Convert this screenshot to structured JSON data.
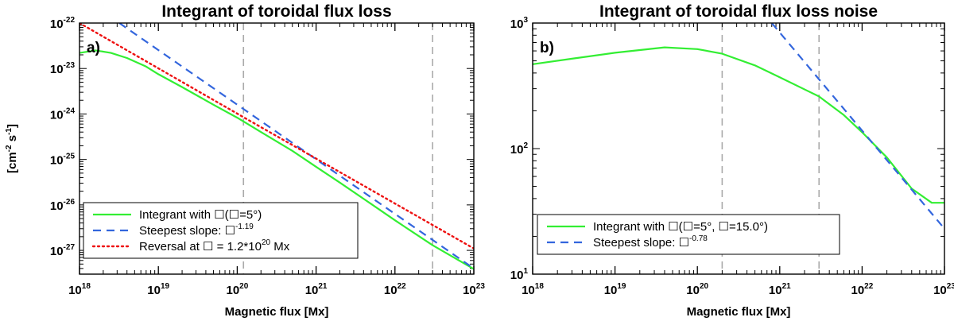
{
  "chart_data": [
    {
      "type": "line",
      "panel_label": "a)",
      "title": "Integrant of toroidal flux loss",
      "xlabel": "Magnetic flux [Mx]",
      "ylabel_parts": [
        "[cm",
        "-2",
        " s",
        "-1",
        "]"
      ],
      "x_scale": "log",
      "y_scale": "log",
      "xlim": [
        1e+18,
        1e+23
      ],
      "ylim": [
        3e-28,
        1e-22
      ],
      "x_ticks": [
        {
          "value": 1e+18,
          "base": "10",
          "exp": "18"
        },
        {
          "value": 1e+19,
          "base": "10",
          "exp": "19"
        },
        {
          "value": 1e+20,
          "base": "10",
          "exp": "20"
        },
        {
          "value": 1e+21,
          "base": "10",
          "exp": "21"
        },
        {
          "value": 1e+22,
          "base": "10",
          "exp": "22"
        },
        {
          "value": 1e+23,
          "base": "10",
          "exp": "23"
        }
      ],
      "y_ticks": [
        {
          "value": 1e-27,
          "base": "10",
          "exp": "-27"
        },
        {
          "value": 1e-26,
          "base": "10",
          "exp": "-26"
        },
        {
          "value": 1e-25,
          "base": "10",
          "exp": "-25"
        },
        {
          "value": 1e-24,
          "base": "10",
          "exp": "-24"
        },
        {
          "value": 1e-23,
          "base": "10",
          "exp": "-23"
        },
        {
          "value": 1e-22,
          "base": "10",
          "exp": "-22"
        }
      ],
      "vlines": [
        1.2e+20,
        3e+22
      ],
      "series": [
        {
          "name": "Integrant with ☐(☐=5°)",
          "style": "solid",
          "color": "#33ee33",
          "x": [
            1e+18,
            1.6e+18,
            2.5e+18,
            4e+18,
            7e+18,
            1e+19,
            2e+19,
            5e+19,
            1e+20,
            2e+20,
            5e+20,
            1e+21,
            2e+21,
            5e+21,
            1e+22,
            3e+22,
            1e+23
          ],
          "y": [
            2.2e-23,
            2.5e-23,
            2.2e-23,
            1.7e-23,
            1.1e-23,
            7.5e-24,
            3.9e-24,
            1.6e-24,
            8.3e-25,
            4e-25,
            1.55e-25,
            6.9e-26,
            3.1e-26,
            1.05e-26,
            4.6e-27,
            1.3e-27,
            3.9e-28
          ]
        },
        {
          "name": "Steepest slope: ☐",
          "slope_label": "-1.19",
          "style": "dashed",
          "color": "#3366dd",
          "x": [
            3.2e+18,
            1e+23
          ],
          "y": [
            1e-22,
            4e-28
          ]
        },
        {
          "name": "Reversal at ☐ = 1.2*10",
          "reversal_exp": "20",
          "reversal_unit": "Mx",
          "style": "dotted",
          "color": "#ee1111",
          "x": [
            1e+18,
            1.2e+20,
            1e+23
          ],
          "y": [
            1e-22,
            8.5e-25,
            1.1e-27
          ]
        }
      ],
      "legend_loc": "lower-left"
    },
    {
      "type": "line",
      "panel_label": "b)",
      "title": "Integrant of toroidal flux loss noise",
      "xlabel": "Magnetic flux [Mx]",
      "x_scale": "log",
      "y_scale": "log",
      "xlim": [
        1e+18,
        1e+23
      ],
      "ylim": [
        10,
        1000
      ],
      "x_ticks": [
        {
          "value": 1e+18,
          "base": "10",
          "exp": "18"
        },
        {
          "value": 1e+19,
          "base": "10",
          "exp": "19"
        },
        {
          "value": 1e+20,
          "base": "10",
          "exp": "20"
        },
        {
          "value": 1e+21,
          "base": "10",
          "exp": "21"
        },
        {
          "value": 1e+22,
          "base": "10",
          "exp": "22"
        },
        {
          "value": 1e+23,
          "base": "10",
          "exp": "23"
        }
      ],
      "y_ticks": [
        {
          "value": 10,
          "base": "10",
          "exp": "1"
        },
        {
          "value": 100,
          "base": "10",
          "exp": "2"
        },
        {
          "value": 1000,
          "base": "10",
          "exp": "3"
        }
      ],
      "vlines": [
        2e+20,
        3e+21
      ],
      "series": [
        {
          "name": "Integrant with ☐(☐=5°, ☐=15.0°)",
          "style": "solid",
          "color": "#33ee33",
          "x": [
            1e+18,
            3e+18,
            1e+19,
            4e+19,
            1e+20,
            2e+20,
            5e+20,
            1e+21,
            3e+21,
            6e+21,
            1e+22,
            2e+22,
            4e+22,
            7e+22,
            1e+23
          ],
          "y": [
            470,
            520,
            580,
            640,
            620,
            570,
            460,
            370,
            260,
            185,
            135,
            85,
            48,
            37,
            37
          ]
        },
        {
          "name": "Steepest slope: ☐",
          "slope_label": "-0.78",
          "style": "dashed",
          "color": "#3366dd",
          "x": [
            8e+20,
            1e+23
          ],
          "y": [
            1000,
            23
          ]
        }
      ],
      "legend_loc": "lower-left"
    }
  ]
}
